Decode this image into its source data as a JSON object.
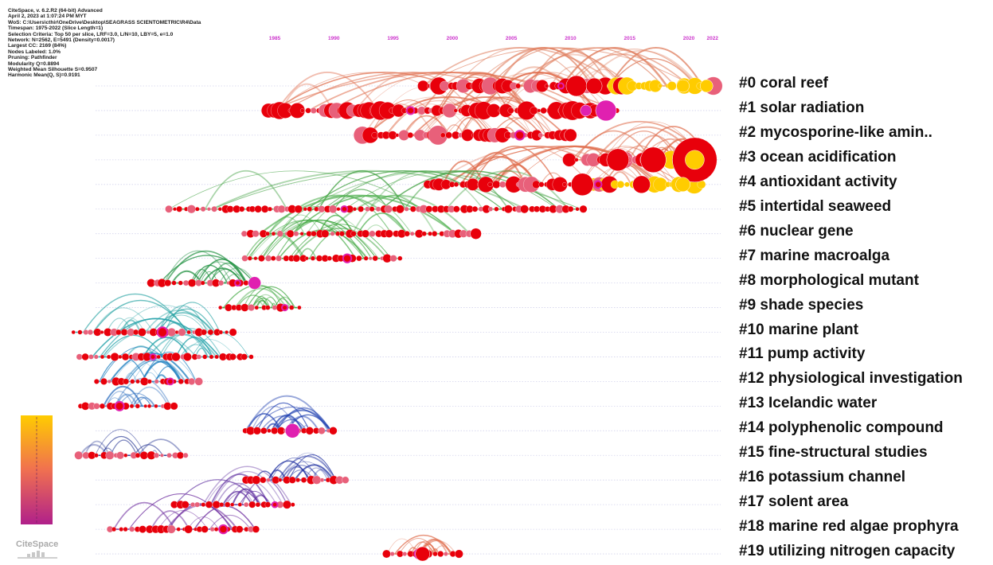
{
  "info_lines": [
    "CiteSpace, v. 6.2.R2 (64-bit) Advanced",
    "April 2, 2023 at 1:07:24 PM MYT",
    "WoS: C:\\Users\\cthir\\OneDrive\\Desktop\\SEAGRASS SCIENTOMETRIC\\R4\\Data",
    "Timespan: 1975-2022 (Slice Length=1)",
    "Selection Criteria: Top 50 per slice, LRF=3.0, L/N=10, LBY=5, e=1.0",
    "Network: N=2562, E=5491 (Density=0.0017)",
    "Largest CC: 2169 (84%)",
    "Nodes Labeled: 1.0%",
    "Pruning: Pathfinder",
    "Modularity Q=0.8894",
    "Weighted Mean Silhouette S=0.9507",
    "Harmonic Mean(Q, S)=0.9191"
  ],
  "years": [
    "1985",
    "1990",
    "1995",
    "2000",
    "2005",
    "2010",
    "2015",
    "2020",
    "2022"
  ],
  "year_color": "#cc33cc",
  "logo_text": "CiteSpace",
  "colors": {
    "node_red": "#e8000b",
    "node_yellow": "#ffcc00",
    "node_magenta": "#e020b0",
    "node_pink": "#e8607a",
    "colorbar_top": "#ffcc00",
    "colorbar_mid": "#f07050",
    "colorbar_bottom": "#b0208a"
  },
  "clusters": [
    {
      "label": "#0 coral reef",
      "start": 1997.5,
      "end": 2022,
      "arc": "#e08060",
      "density": "high"
    },
    {
      "label": "#1 solar radiation",
      "start": 1984.5,
      "end": 2014,
      "arc": "#e07050",
      "density": "high"
    },
    {
      "label": "#2 mycosporine-like amin..",
      "start": 1992.5,
      "end": 2010,
      "arc": "#e07050",
      "density": "high"
    },
    {
      "label": "#3 ocean acidification",
      "start": 2010,
      "end": 2022,
      "arc": "#e07050",
      "density": "high"
    },
    {
      "label": "#4 antioxidant activity",
      "start": 1998,
      "end": 2021,
      "arc": "#e07050",
      "density": "high"
    },
    {
      "label": "#5 intertidal seaweed",
      "start": 1976,
      "end": 2011,
      "arc": "#40a040",
      "density": "medium"
    },
    {
      "label": "#6 nuclear gene",
      "start": 1982.5,
      "end": 2002,
      "arc": "#50b050",
      "density": "medium"
    },
    {
      "label": "#7 marine macroalga",
      "start": 1982.5,
      "end": 1995.5,
      "arc": "#30a030",
      "density": "medium"
    },
    {
      "label": "#8 morphological mutant",
      "start": 1974.5,
      "end": 1983.5,
      "arc": "#209040",
      "density": "medium"
    },
    {
      "label": "#9 shade species",
      "start": 1980.5,
      "end": 1987,
      "arc": "#30a030",
      "density": "medium"
    },
    {
      "label": "#10 marine plant",
      "start": 1968,
      "end": 1981.5,
      "arc": "#20a0a0",
      "density": "medium"
    },
    {
      "label": "#11 pump activity",
      "start": 1968.5,
      "end": 1983,
      "arc": "#20a0a8",
      "density": "medium"
    },
    {
      "label": "#12 physiological investigation",
      "start": 1970,
      "end": 1978.5,
      "arc": "#2080c0",
      "density": "medium"
    },
    {
      "label": "#13 Icelandic water",
      "start": 1968.5,
      "end": 1976.5,
      "arc": "#3070c0",
      "density": "low"
    },
    {
      "label": "#14 polyphenolic compound",
      "start": 1982.5,
      "end": 1990,
      "arc": "#2040b0",
      "density": "medium"
    },
    {
      "label": "#15 fine-structural studies",
      "start": 1968.5,
      "end": 1977.5,
      "arc": "#203090",
      "density": "low"
    },
    {
      "label": "#16 potassium channel",
      "start": 1982.5,
      "end": 1991,
      "arc": "#2030a0",
      "density": "medium"
    },
    {
      "label": "#17 solent area",
      "start": 1976.5,
      "end": 1986.5,
      "arc": "#6030a0",
      "density": "medium"
    },
    {
      "label": "#18 marine red algae prophyra",
      "start": 1971,
      "end": 1983.5,
      "arc": "#7030a0",
      "density": "low"
    },
    {
      "label": "#19 utilizing nitrogen capacity",
      "start": 1994.5,
      "end": 2000.5,
      "arc": "#e07050",
      "density": "medium"
    }
  ]
}
